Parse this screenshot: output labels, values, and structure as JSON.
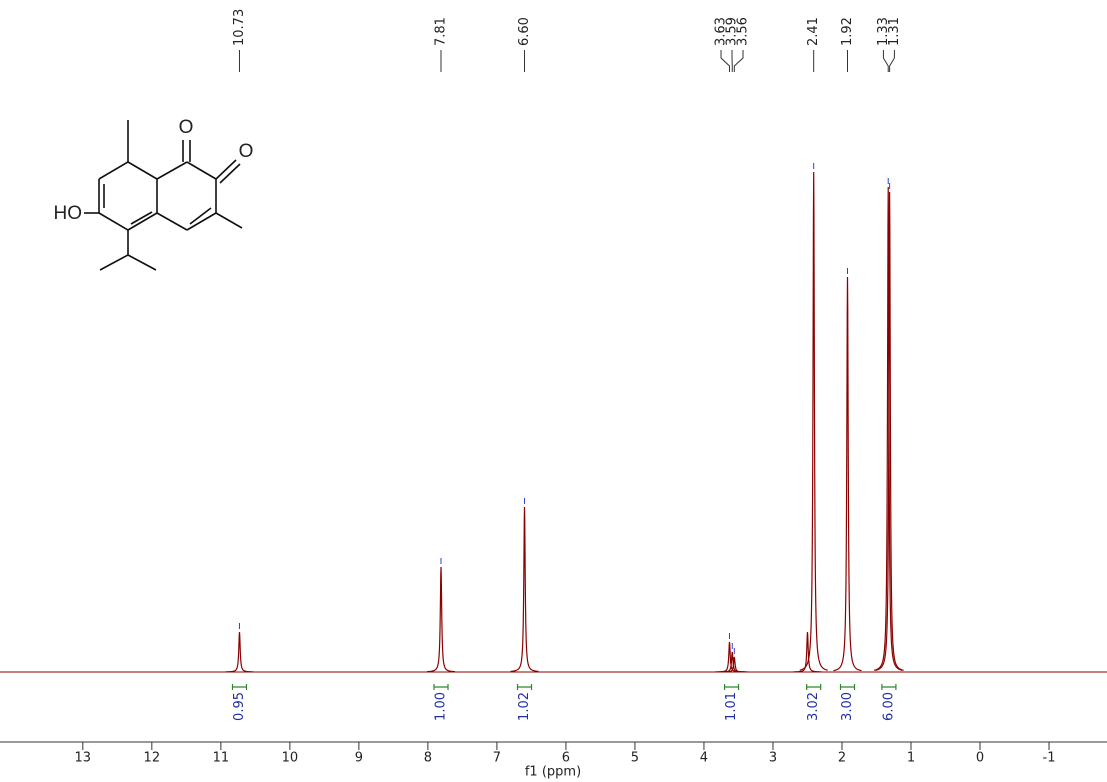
{
  "chart_data": {
    "type": "nmr",
    "xlabel": "f1 (ppm)",
    "xlim": [
      14.2,
      -1.84
    ],
    "xticks": [
      13,
      12,
      11,
      10,
      9,
      8,
      7,
      6,
      5,
      4,
      3,
      2,
      1,
      0,
      -1
    ],
    "ylim": [
      0,
      100
    ],
    "color": "#8b0000",
    "peaks": {
      "x": [
        10.73,
        7.81,
        6.6,
        3.63,
        3.59,
        3.56,
        2.5,
        2.41,
        1.92,
        1.33,
        1.31
      ],
      "values": [
        8,
        21,
        33,
        6,
        4,
        3,
        8,
        100,
        79,
        97,
        96
      ]
    },
    "peak_labels": [
      10.73,
      7.81,
      {
        "value": 6.6,
        "label": "6.60"
      },
      3.63,
      3.59,
      3.56,
      2.41,
      1.92,
      1.33,
      1.31
    ],
    "integrals": {
      "x": [
        10.73,
        7.81,
        6.6,
        3.6,
        2.41,
        1.92,
        1.32
      ],
      "values": [
        0.95,
        1,
        1.02,
        1.01,
        3.02,
        3,
        6
      ],
      "value_labels": [
        "0.95",
        "1.00",
        "1.02",
        "1.01",
        "3.02",
        "3.00",
        "6.00"
      ]
    }
  },
  "molecule": {
    "atoms": [
      "O",
      "O",
      "HO"
    ]
  }
}
